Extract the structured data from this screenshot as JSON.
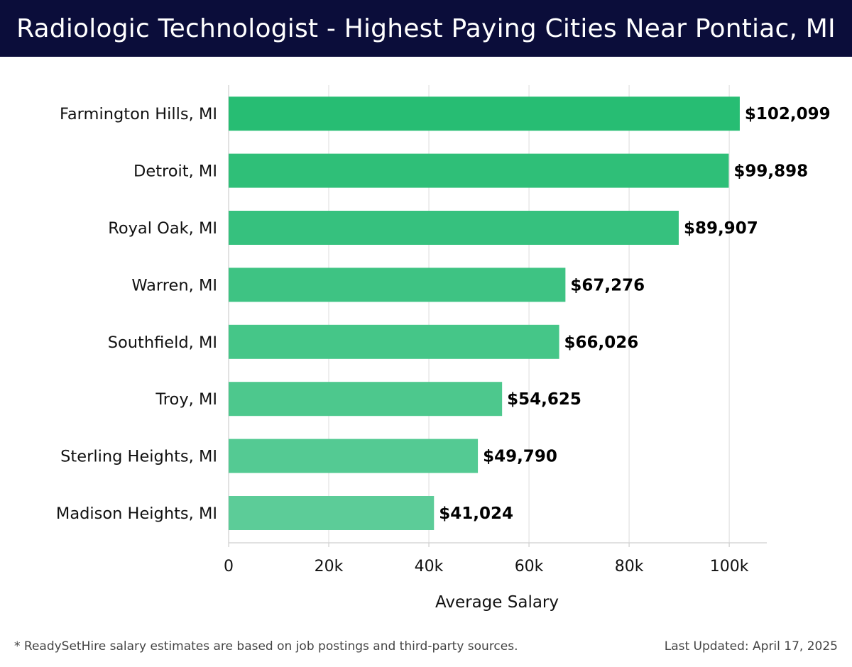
{
  "header": {
    "title": "Radiologic Technologist - Highest Paying Cities Near Pontiac, MI"
  },
  "chart_data": {
    "type": "bar",
    "orientation": "horizontal",
    "title": "Radiologic Technologist - Highest Paying Cities Near Pontiac, MI",
    "categories": [
      "Farmington Hills, MI",
      "Detroit, MI",
      "Royal Oak, MI",
      "Warren, MI",
      "Southfield, MI",
      "Troy, MI",
      "Sterling Heights, MI",
      "Madison Heights, MI"
    ],
    "values": [
      102099,
      99898,
      89907,
      67276,
      66026,
      54625,
      49790,
      41024
    ],
    "value_labels": [
      "$102,099",
      "$99,898",
      "$89,907",
      "$67,276",
      "$66,026",
      "$54,625",
      "$49,790",
      "$41,024"
    ],
    "xlabel": "Average Salary",
    "ylabel": "",
    "xlim": [
      0,
      107500
    ],
    "xticks": [
      0,
      20000,
      40000,
      60000,
      80000,
      100000
    ],
    "xtick_labels": [
      "0",
      "20k",
      "40k",
      "60k",
      "80k",
      "100k"
    ],
    "grid": true,
    "colors": {
      "bar_top": "#27bd73",
      "bar_bottom": "#5ccc98",
      "grid": "#e2e2e2",
      "axis": "#cfcfcf"
    }
  },
  "footer": {
    "note": "* ReadySetHire salary estimates are based on job postings and third-party sources.",
    "updated": "Last Updated: April 17, 2025"
  }
}
